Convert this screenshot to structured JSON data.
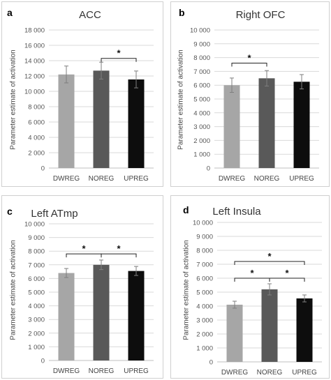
{
  "chart_data": [
    {
      "type": "bar",
      "panel_label": "a",
      "title": "ACC",
      "ylabel": "Parameter estimate of activation",
      "categories": [
        "DWREG",
        "NOREG",
        "UPREG"
      ],
      "values": [
        12200,
        12700,
        11550
      ],
      "errors": [
        1100,
        1100,
        1100
      ],
      "ylim": [
        0,
        18000
      ],
      "yticks": [
        0,
        2000,
        4000,
        6000,
        8000,
        10000,
        12000,
        14000,
        16000,
        18000
      ],
      "ytick_labels": [
        "0",
        "2 000",
        "4 000",
        "6 000",
        "8 000",
        "10 000",
        "12 000",
        "14 000",
        "16 000",
        "18 000"
      ],
      "bar_colors": [
        "#a6a6a6",
        "#595959",
        "#0d0d0d"
      ],
      "significance": [
        {
          "from": 1,
          "to": 2,
          "label": "*",
          "y": 14300
        }
      ]
    },
    {
      "type": "bar",
      "panel_label": "b",
      "title": "Right OFC",
      "ylabel": "Parameter estimate of activation",
      "categories": [
        "DWREG",
        "NOREG",
        "UPREG"
      ],
      "values": [
        6000,
        6500,
        6250
      ],
      "errors": [
        520,
        560,
        520
      ],
      "ylim": [
        0,
        10000
      ],
      "yticks": [
        0,
        1000,
        2000,
        3000,
        4000,
        5000,
        6000,
        7000,
        8000,
        9000,
        10000
      ],
      "ytick_labels": [
        "0",
        "1 000",
        "2 000",
        "3 000",
        "4 000",
        "5 000",
        "6 000",
        "7 000",
        "8 000",
        "9 000",
        "10 000"
      ],
      "bar_colors": [
        "#a6a6a6",
        "#595959",
        "#0d0d0d"
      ],
      "significance": [
        {
          "from": 0,
          "to": 1,
          "label": "*",
          "y": 7600
        }
      ]
    },
    {
      "type": "bar",
      "panel_label": "c",
      "title": "Left ATmp",
      "ylabel": "Parameter estimate of activation",
      "categories": [
        "DWREG",
        "NOREG",
        "UPREG"
      ],
      "values": [
        6400,
        7000,
        6550
      ],
      "errors": [
        330,
        350,
        330
      ],
      "ylim": [
        0,
        10000
      ],
      "yticks": [
        0,
        1000,
        2000,
        3000,
        4000,
        5000,
        6000,
        7000,
        8000,
        9000,
        10000
      ],
      "ytick_labels": [
        "0",
        "1 000",
        "2 000",
        "3 000",
        "4 000",
        "5 000",
        "6 000",
        "7 000",
        "8 000",
        "9 000",
        "10 000"
      ],
      "bar_colors": [
        "#a6a6a6",
        "#595959",
        "#0d0d0d"
      ],
      "significance": [
        {
          "from": 0,
          "to": 1,
          "label": "*",
          "y": 7800
        },
        {
          "from": 1,
          "to": 2,
          "label": "*",
          "y": 7800
        }
      ]
    },
    {
      "type": "bar",
      "panel_label": "d",
      "title": "Left Insula",
      "ylabel": "Parameter estimate of activation",
      "categories": [
        "DWREG",
        "NOREG",
        "UPREG"
      ],
      "values": [
        4100,
        5200,
        4550
      ],
      "errors": [
        250,
        400,
        250
      ],
      "ylim": [
        0,
        10000
      ],
      "yticks": [
        0,
        1000,
        2000,
        3000,
        4000,
        5000,
        6000,
        7000,
        8000,
        9000,
        10000
      ],
      "ytick_labels": [
        "0",
        "1 000",
        "2 000",
        "3 000",
        "4 000",
        "5 000",
        "6 000",
        "7 000",
        "8 000",
        "9 000",
        "10 000"
      ],
      "bar_colors": [
        "#a6a6a6",
        "#595959",
        "#0d0d0d"
      ],
      "significance": [
        {
          "from": 0,
          "to": 1,
          "label": "*",
          "y": 6000
        },
        {
          "from": 1,
          "to": 2,
          "label": "*",
          "y": 6000
        },
        {
          "from": 0,
          "to": 2,
          "label": "*",
          "y": 7200
        }
      ]
    }
  ]
}
